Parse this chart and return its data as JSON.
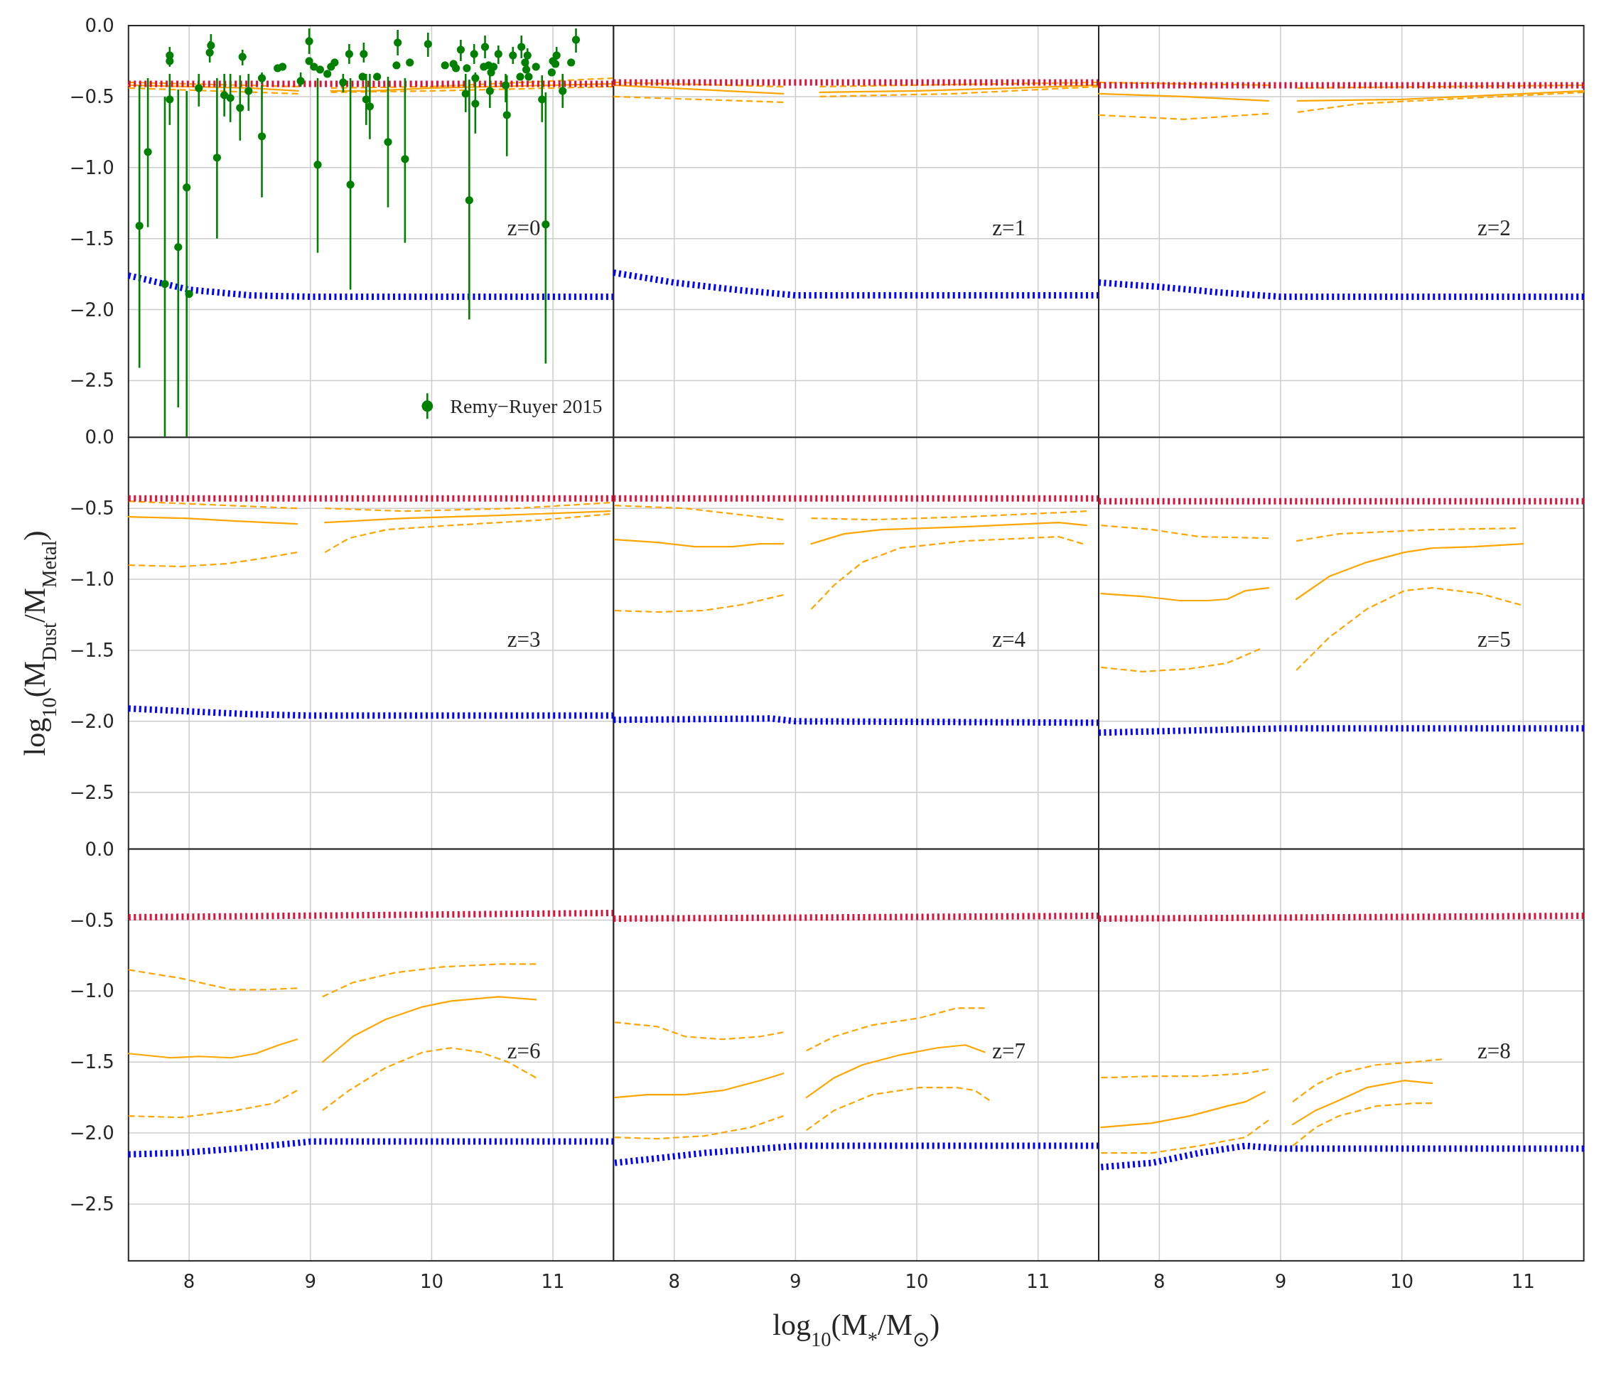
{
  "chart_data": [
    {
      "type": "line",
      "xlim": [
        7.5,
        11.5
      ],
      "xticks": [
        8,
        9,
        10,
        11
      ],
      "ylim": [
        -2.9,
        0
      ],
      "yticks": [
        {
          "value": 0,
          "label": "0.0"
        },
        {
          "value": -0.5,
          "label": "−0.5"
        },
        {
          "value": -1,
          "label": "−1.0"
        },
        {
          "value": -1.5,
          "label": "−1.5"
        },
        {
          "value": -2,
          "label": "−2.0"
        },
        {
          "value": -2.5,
          "label": "−2.5"
        }
      ],
      "grid": true,
      "tick_labels": "y",
      "legend": "bottom right",
      "annotations": [
        "z=0"
      ],
      "series": [
        {
          "color": "#ffa500",
          "line_style": "solid",
          "x": [
            7.5,
            8.0,
            8.5,
            8.9
          ],
          "values": [
            -0.42,
            -0.43,
            -0.44,
            -0.46
          ]
        },
        {
          "color": "#ffa500",
          "line_style": "solid",
          "x": [
            9.17,
            9.5,
            10.0,
            10.5,
            11.0,
            11.5
          ],
          "values": [
            -0.46,
            -0.46,
            -0.44,
            -0.43,
            -0.42,
            -0.41
          ]
        },
        {
          "color": "#ffa500",
          "line_style": "dashed",
          "x": [
            7.5,
            8.9
          ],
          "values": [
            -0.4,
            -0.43
          ]
        },
        {
          "color": "#ffa500",
          "line_style": "dashed",
          "x": [
            9.17,
            10.0,
            11.0,
            11.5
          ],
          "values": [
            -0.44,
            -0.43,
            -0.39,
            -0.37
          ]
        },
        {
          "color": "#ffa500",
          "line_style": "dashed",
          "x": [
            7.5,
            8.9
          ],
          "values": [
            -0.44,
            -0.48
          ]
        },
        {
          "color": "#ffa500",
          "line_style": "dashed",
          "x": [
            9.17,
            10.0,
            11.0,
            11.5
          ],
          "values": [
            -0.47,
            -0.46,
            -0.44,
            -0.43
          ]
        },
        {
          "color": "#dc143c",
          "line_style": "dotted",
          "x": [
            7.5,
            11.5
          ],
          "values": [
            -0.41,
            -0.41
          ]
        },
        {
          "color": "#0000ff",
          "line_style": "dotted",
          "x": [
            7.5,
            8.0,
            8.5,
            9.0,
            11.5
          ],
          "values": [
            -1.76,
            -1.86,
            -1.9,
            -1.91,
            -1.91
          ]
        },
        {
          "type": "scatter",
          "name": "Remy−Ruyer 2015",
          "color": "#008000",
          "marker": "circle",
          "x": [
            7.59,
            7.66,
            7.8,
            7.84,
            7.84,
            7.84,
            7.91,
            7.98,
            8.0,
            8.08,
            8.17,
            8.18,
            8.23,
            8.29,
            8.34,
            8.42,
            8.44,
            8.49,
            8.6,
            8.6,
            8.73,
            8.77,
            8.92,
            8.99,
            8.99,
            9.03,
            9.08,
            9.14,
            9.17,
            9.2,
            9.06,
            9.27,
            9.32,
            9.33,
            9.44,
            9.43,
            9.46,
            9.49,
            9.55,
            9.64,
            9.71,
            9.72,
            9.78,
            9.82,
            9.97,
            10.11,
            10.18,
            10.2,
            10.24,
            10.29,
            10.28,
            10.31,
            10.35,
            10.36,
            10.36,
            10.44,
            10.43,
            10.47,
            10.51,
            10.49,
            10.48,
            10.55,
            10.61,
            10.62,
            10.67,
            10.74,
            10.73,
            10.79,
            10.77,
            10.78,
            10.8,
            10.86,
            10.91,
            10.94,
            10.99,
            11.0,
            11.03,
            11.02,
            11.08,
            11.15,
            11.19
          ],
          "values": [
            -1.41,
            -0.89,
            -1.82,
            -0.21,
            -0.25,
            -0.52,
            -1.56,
            -1.14,
            -1.89,
            -0.44,
            -0.19,
            -0.14,
            -0.93,
            -0.49,
            -0.51,
            -0.58,
            -0.22,
            -0.46,
            -0.37,
            -0.78,
            -0.3,
            -0.29,
            -0.39,
            -0.11,
            -0.25,
            -0.29,
            -0.31,
            -0.34,
            -0.29,
            -0.26,
            -0.98,
            -0.4,
            -0.2,
            -1.12,
            -0.2,
            -0.36,
            -0.52,
            -0.57,
            -0.36,
            -0.82,
            -0.28,
            -0.12,
            -0.94,
            -0.26,
            -0.13,
            -0.28,
            -0.27,
            -0.3,
            -0.17,
            -0.3,
            -0.48,
            -1.23,
            -0.2,
            -0.37,
            -0.55,
            -0.15,
            -0.29,
            -0.28,
            -0.29,
            -0.33,
            -0.46,
            -0.2,
            -0.42,
            -0.63,
            -0.21,
            -0.15,
            -0.36,
            -0.21,
            -0.26,
            -0.31,
            -0.36,
            -0.29,
            -0.52,
            -1.4,
            -0.33,
            -0.25,
            -0.21,
            -0.27,
            -0.46,
            -0.26,
            -0.1
          ],
          "errors": [
            [
              -2.41,
              -0.42
            ],
            [
              -1.42,
              -0.37
            ],
            [
              -2.9,
              -0.5
            ],
            [
              -0.29,
              -0.15
            ],
            null,
            [
              -0.7,
              -0.34
            ],
            [
              -2.69,
              -0.45
            ],
            [
              -2.9,
              -0.46
            ],
            null,
            [
              -0.57,
              -0.34
            ],
            [
              -0.26,
              -0.11
            ],
            [
              -0.21,
              -0.06
            ],
            [
              -1.5,
              -0.37
            ],
            [
              -0.64,
              -0.34
            ],
            [
              -0.68,
              -0.34
            ],
            [
              -0.81,
              -0.35
            ],
            [
              -0.28,
              -0.17
            ],
            [
              -0.6,
              -0.34
            ],
            [
              -0.41,
              -0.33
            ],
            [
              -1.21,
              -0.42
            ],
            null,
            null,
            [
              -0.43,
              -0.33
            ],
            [
              -0.2,
              -0.02
            ],
            null,
            null,
            null,
            null,
            null,
            null,
            [
              -1.6,
              -0.37
            ],
            [
              -0.47,
              -0.34
            ],
            [
              -0.27,
              -0.13
            ],
            [
              -1.86,
              -0.37
            ],
            [
              -0.26,
              -0.12
            ],
            null,
            [
              -0.7,
              -0.34
            ],
            [
              -0.8,
              -0.34
            ],
            null,
            [
              -1.28,
              -0.36
            ],
            null,
            [
              -0.21,
              -0.03
            ],
            [
              -1.53,
              -0.37
            ],
            null,
            [
              -0.22,
              -0.05
            ],
            null,
            null,
            null,
            [
              -0.25,
              -0.1
            ],
            null,
            [
              -0.61,
              -0.34
            ],
            [
              -2.07,
              -0.38
            ],
            [
              -0.27,
              -0.13
            ],
            null,
            [
              -0.76,
              -0.33
            ],
            [
              -0.23,
              -0.07
            ],
            null,
            null,
            null,
            null,
            [
              -0.58,
              -0.34
            ],
            [
              -0.27,
              -0.14
            ],
            [
              -0.54,
              -0.34
            ],
            [
              -0.92,
              -0.35
            ],
            [
              -0.27,
              -0.15
            ],
            [
              -0.23,
              -0.07
            ],
            null,
            [
              -0.29,
              -0.16
            ],
            null,
            null,
            null,
            null,
            [
              -0.68,
              -0.35
            ],
            [
              -2.38,
              -0.47
            ],
            null,
            null,
            [
              -0.24,
              -0.15
            ],
            null,
            [
              -0.58,
              -0.34
            ],
            null,
            [
              -0.19,
              -0.02
            ]
          ]
        }
      ]
    },
    {
      "type": "line",
      "xlim": [
        7.5,
        11.5
      ],
      "xticks": [
        8,
        9,
        10,
        11
      ],
      "ylim": [
        -2.9,
        0
      ],
      "yticks": [
        0,
        -0.5,
        -1,
        -1.5,
        -2,
        -2.5
      ],
      "grid": true,
      "tick_labels": false,
      "annotations": [
        "z=1"
      ],
      "series": [
        {
          "color": "#ffa500",
          "line_style": "solid",
          "x": [
            7.5,
            8.2,
            8.9
          ],
          "values": [
            -0.42,
            -0.45,
            -0.48
          ]
        },
        {
          "color": "#ffa500",
          "line_style": "solid",
          "x": [
            9.2,
            10.0,
            10.8,
            11.5
          ],
          "values": [
            -0.47,
            -0.46,
            -0.44,
            -0.42
          ]
        },
        {
          "color": "#ffa500",
          "line_style": "dashed",
          "x": [
            7.5,
            8.9
          ],
          "values": [
            -0.4,
            -0.43
          ]
        },
        {
          "color": "#ffa500",
          "line_style": "dashed",
          "x": [
            9.2,
            11.5
          ],
          "values": [
            -0.43,
            -0.4
          ]
        },
        {
          "color": "#ffa500",
          "line_style": "dashed",
          "x": [
            7.5,
            8.9
          ],
          "values": [
            -0.5,
            -0.54
          ]
        },
        {
          "color": "#ffa500",
          "line_style": "dashed",
          "x": [
            9.2,
            10.3,
            11.5
          ],
          "values": [
            -0.5,
            -0.48,
            -0.43
          ]
        },
        {
          "color": "#dc143c",
          "line_style": "dotted",
          "x": [
            7.5,
            11.5
          ],
          "values": [
            -0.4,
            -0.4
          ]
        },
        {
          "color": "#0000ff",
          "line_style": "dotted",
          "x": [
            7.5,
            8.0,
            8.5,
            9.0,
            11.5
          ],
          "values": [
            -1.74,
            -1.81,
            -1.86,
            -1.9,
            -1.9
          ]
        }
      ]
    },
    {
      "type": "line",
      "xlim": [
        7.5,
        11.5
      ],
      "xticks": [
        8,
        9,
        10,
        11
      ],
      "ylim": [
        -2.9,
        0
      ],
      "yticks": [
        0,
        -0.5,
        -1,
        -1.5,
        -2,
        -2.5
      ],
      "grid": true,
      "tick_labels": false,
      "annotations": [
        "z=2"
      ],
      "series": [
        {
          "color": "#ffa500",
          "line_style": "solid",
          "x": [
            7.5,
            8.2,
            8.9
          ],
          "values": [
            -0.48,
            -0.5,
            -0.53
          ]
        },
        {
          "color": "#ffa500",
          "line_style": "solid",
          "x": [
            9.14,
            10.0,
            11.5
          ],
          "values": [
            -0.53,
            -0.52,
            -0.46
          ]
        },
        {
          "color": "#ffa500",
          "line_style": "dashed",
          "x": [
            7.5,
            8.9
          ],
          "values": [
            -0.4,
            -0.42
          ]
        },
        {
          "color": "#ffa500",
          "line_style": "dashed",
          "x": [
            9.14,
            11.5
          ],
          "values": [
            -0.44,
            -0.42
          ]
        },
        {
          "color": "#ffa500",
          "line_style": "dashed",
          "x": [
            7.5,
            8.2,
            8.9
          ],
          "values": [
            -0.63,
            -0.66,
            -0.62
          ]
        },
        {
          "color": "#ffa500",
          "line_style": "dashed",
          "x": [
            9.14,
            9.65,
            11.5
          ],
          "values": [
            -0.61,
            -0.55,
            -0.47
          ]
        },
        {
          "color": "#dc143c",
          "line_style": "dotted",
          "x": [
            7.5,
            11.5
          ],
          "values": [
            -0.42,
            -0.42
          ]
        },
        {
          "color": "#0000ff",
          "line_style": "dotted",
          "x": [
            7.5,
            8.0,
            8.5,
            9.0,
            11.5
          ],
          "values": [
            -1.81,
            -1.84,
            -1.88,
            -1.91,
            -1.91
          ]
        }
      ]
    },
    {
      "type": "line",
      "xlim": [
        7.5,
        11.5
      ],
      "xticks": [
        8,
        9,
        10,
        11
      ],
      "ylim": [
        -2.9,
        0
      ],
      "yticks": [
        {
          "value": 0,
          "label": "0.0"
        },
        {
          "value": -0.5,
          "label": "−0.5"
        },
        {
          "value": -1,
          "label": "−1.0"
        },
        {
          "value": -1.5,
          "label": "−1.5"
        },
        {
          "value": -2,
          "label": "−2.0"
        },
        {
          "value": -2.5,
          "label": "−2.5"
        }
      ],
      "grid": true,
      "tick_labels": "y",
      "ylabel": "log$_{10}$(M$_{Dust}$/M$_{Metal}$)",
      "annotations": [
        "z=3"
      ],
      "series": [
        {
          "color": "#ffa500",
          "line_style": "solid",
          "x": [
            7.5,
            7.97,
            8.39,
            8.89
          ],
          "values": [
            -0.56,
            -0.57,
            -0.59,
            -0.61
          ]
        },
        {
          "color": "#ffa500",
          "line_style": "solid",
          "x": [
            9.12,
            9.78,
            10.55,
            11.47
          ],
          "values": [
            -0.6,
            -0.57,
            -0.55,
            -0.52
          ]
        },
        {
          "color": "#ffa500",
          "line_style": "dashed",
          "x": [
            7.5,
            8.89
          ],
          "values": [
            -0.45,
            -0.5
          ]
        },
        {
          "color": "#ffa500",
          "line_style": "dashed",
          "x": [
            9.12,
            9.78,
            10.7,
            11.47
          ],
          "values": [
            -0.5,
            -0.52,
            -0.5,
            -0.46
          ]
        },
        {
          "color": "#ffa500",
          "line_style": "dashed",
          "x": [
            7.5,
            7.93,
            8.31,
            8.62,
            8.89
          ],
          "values": [
            -0.9,
            -0.91,
            -0.89,
            -0.85,
            -0.81
          ]
        },
        {
          "color": "#ffa500",
          "line_style": "dashed",
          "x": [
            9.12,
            9.32,
            9.63,
            10.16,
            10.94,
            11.47
          ],
          "values": [
            -0.81,
            -0.71,
            -0.65,
            -0.62,
            -0.58,
            -0.54
          ]
        },
        {
          "color": "#dc143c",
          "line_style": "dotted",
          "x": [
            7.5,
            11.5
          ],
          "values": [
            -0.43,
            -0.43
          ]
        },
        {
          "color": "#0000ff",
          "line_style": "dotted",
          "x": [
            7.5,
            8.0,
            8.5,
            9.0,
            11.5
          ],
          "values": [
            -1.91,
            -1.93,
            -1.95,
            -1.96,
            -1.96
          ]
        }
      ]
    },
    {
      "type": "line",
      "xlim": [
        7.5,
        11.5
      ],
      "xticks": [
        8,
        9,
        10,
        11
      ],
      "ylim": [
        -2.9,
        0
      ],
      "yticks": [
        0,
        -0.5,
        -1,
        -1.5,
        -2,
        -2.5
      ],
      "grid": true,
      "tick_labels": false,
      "annotations": [
        "z=4"
      ],
      "series": [
        {
          "color": "#ffa500",
          "line_style": "solid",
          "x": [
            7.51,
            7.86,
            8.17,
            8.48,
            8.71,
            8.9
          ],
          "values": [
            -0.72,
            -0.74,
            -0.77,
            -0.77,
            -0.75,
            -0.75
          ]
        },
        {
          "color": "#ffa500",
          "line_style": "solid",
          "x": [
            9.13,
            9.4,
            9.71,
            10.4,
            11.17,
            11.4
          ],
          "values": [
            -0.75,
            -0.68,
            -0.65,
            -0.63,
            -0.6,
            -0.62
          ]
        },
        {
          "color": "#ffa500",
          "line_style": "dashed",
          "x": [
            7.51,
            8.09,
            8.9
          ],
          "values": [
            -0.48,
            -0.5,
            -0.58
          ]
        },
        {
          "color": "#ffa500",
          "line_style": "dashed",
          "x": [
            9.13,
            9.63,
            10.4,
            11.17,
            11.4
          ],
          "values": [
            -0.57,
            -0.58,
            -0.56,
            -0.53,
            -0.52
          ]
        },
        {
          "color": "#ffa500",
          "line_style": "dashed",
          "x": [
            7.51,
            7.86,
            8.24,
            8.55,
            8.9
          ],
          "values": [
            -1.22,
            -1.23,
            -1.22,
            -1.18,
            -1.11
          ]
        },
        {
          "color": "#ffa500",
          "line_style": "dashed",
          "x": [
            9.13,
            9.32,
            9.55,
            9.86,
            10.4,
            11.17,
            11.37
          ],
          "values": [
            -1.21,
            -1.04,
            -0.88,
            -0.78,
            -0.73,
            -0.7,
            -0.75
          ]
        },
        {
          "color": "#dc143c",
          "line_style": "dotted",
          "x": [
            7.5,
            11.5
          ],
          "values": [
            -0.43,
            -0.43
          ]
        },
        {
          "color": "#0000ff",
          "line_style": "dotted",
          "x": [
            7.5,
            8.8,
            9.0,
            11.5
          ],
          "values": [
            -1.99,
            -1.98,
            -2.0,
            -2.01
          ]
        }
      ]
    },
    {
      "type": "line",
      "xlim": [
        7.5,
        11.5
      ],
      "xticks": [
        8,
        9,
        10,
        11
      ],
      "ylim": [
        -2.9,
        0
      ],
      "yticks": [
        0,
        -0.5,
        -1,
        -1.5,
        -2,
        -2.5
      ],
      "grid": true,
      "tick_labels": false,
      "annotations": [
        "z=5"
      ],
      "series": [
        {
          "color": "#ffa500",
          "line_style": "solid",
          "x": [
            7.52,
            7.86,
            8.17,
            8.4,
            8.56,
            8.71,
            8.9
          ],
          "values": [
            -1.1,
            -1.12,
            -1.15,
            -1.15,
            -1.14,
            -1.08,
            -1.06
          ]
        },
        {
          "color": "#ffa500",
          "line_style": "solid",
          "x": [
            9.13,
            9.4,
            9.71,
            10.02,
            10.25,
            10.6,
            11.0
          ],
          "values": [
            -1.14,
            -0.98,
            -0.88,
            -0.81,
            -0.78,
            -0.77,
            -0.75
          ]
        },
        {
          "color": "#ffa500",
          "line_style": "dashed",
          "x": [
            7.52,
            7.94,
            8.33,
            8.9
          ],
          "values": [
            -0.62,
            -0.65,
            -0.7,
            -0.71
          ]
        },
        {
          "color": "#ffa500",
          "line_style": "dashed",
          "x": [
            9.13,
            9.48,
            10.25,
            10.94
          ],
          "values": [
            -0.73,
            -0.68,
            -0.65,
            -0.64
          ]
        },
        {
          "color": "#ffa500",
          "line_style": "dashed",
          "x": [
            7.52,
            7.86,
            8.25,
            8.56,
            8.83
          ],
          "values": [
            -1.62,
            -1.65,
            -1.63,
            -1.59,
            -1.49
          ]
        },
        {
          "color": "#ffa500",
          "line_style": "dashed",
          "x": [
            9.13,
            9.4,
            9.71,
            10.02,
            10.25,
            10.64,
            10.98
          ],
          "values": [
            -1.64,
            -1.41,
            -1.21,
            -1.08,
            -1.06,
            -1.1,
            -1.18
          ]
        },
        {
          "color": "#dc143c",
          "line_style": "dotted",
          "x": [
            7.5,
            11.5
          ],
          "values": [
            -0.45,
            -0.45
          ]
        },
        {
          "color": "#0000ff",
          "line_style": "dotted",
          "x": [
            7.5,
            9.0,
            11.5
          ],
          "values": [
            -2.08,
            -2.05,
            -2.05
          ]
        }
      ]
    },
    {
      "type": "line",
      "xlim": [
        7.5,
        11.5
      ],
      "xticks": [
        8,
        9,
        10,
        11
      ],
      "ylim": [
        -2.9,
        0
      ],
      "yticks": [
        {
          "value": 0,
          "label": "0.0"
        },
        {
          "value": -0.5,
          "label": "−0.5"
        },
        {
          "value": -1,
          "label": "−1.0"
        },
        {
          "value": -1.5,
          "label": "−1.5"
        },
        {
          "value": -2,
          "label": "−2.0"
        },
        {
          "value": -2.5,
          "label": "−2.5"
        }
      ],
      "grid": true,
      "annotations": [
        "z=6"
      ],
      "series": [
        {
          "color": "#ffa500",
          "line_style": "solid",
          "x": [
            7.5,
            7.85,
            8.08,
            8.35,
            8.55,
            8.74,
            8.89
          ],
          "values": [
            -1.44,
            -1.47,
            -1.46,
            -1.47,
            -1.44,
            -1.38,
            -1.34
          ]
        },
        {
          "color": "#ffa500",
          "line_style": "solid",
          "x": [
            9.1,
            9.35,
            9.62,
            9.93,
            10.16,
            10.55,
            10.86
          ],
          "values": [
            -1.5,
            -1.32,
            -1.2,
            -1.11,
            -1.07,
            -1.04,
            -1.06
          ]
        },
        {
          "color": "#ffa500",
          "line_style": "dashed",
          "x": [
            7.5,
            7.93,
            8.35,
            8.62,
            8.89
          ],
          "values": [
            -0.85,
            -0.91,
            -0.99,
            -0.99,
            -0.98
          ]
        },
        {
          "color": "#ffa500",
          "line_style": "dashed",
          "x": [
            9.1,
            9.35,
            9.7,
            10.09,
            10.55,
            10.86
          ],
          "values": [
            -1.04,
            -0.94,
            -0.87,
            -0.83,
            -0.81,
            -0.81
          ]
        },
        {
          "color": "#ffa500",
          "line_style": "dashed",
          "x": [
            7.5,
            7.93,
            8.39,
            8.7,
            8.89
          ],
          "values": [
            -1.88,
            -1.89,
            -1.84,
            -1.79,
            -1.7
          ]
        },
        {
          "color": "#ffa500",
          "line_style": "dashed",
          "x": [
            9.1,
            9.32,
            9.62,
            9.93,
            10.16,
            10.4,
            10.63,
            10.86
          ],
          "values": [
            -1.84,
            -1.7,
            -1.54,
            -1.43,
            -1.4,
            -1.43,
            -1.5,
            -1.61
          ]
        },
        {
          "color": "#dc143c",
          "line_style": "dotted",
          "x": [
            7.5,
            11.5
          ],
          "values": [
            -0.48,
            -0.45
          ]
        },
        {
          "color": "#0000ff",
          "line_style": "dotted",
          "x": [
            7.5,
            7.93,
            8.39,
            8.89,
            9.0,
            11.5
          ],
          "values": [
            -2.15,
            -2.14,
            -2.11,
            -2.07,
            -2.06,
            -2.06
          ]
        }
      ]
    },
    {
      "type": "line",
      "xlim": [
        7.5,
        11.5
      ],
      "xticks": [
        8,
        9,
        10,
        11
      ],
      "ylim": [
        -2.9,
        0
      ],
      "yticks": [
        0,
        -0.5,
        -1,
        -1.5,
        -2,
        -2.5
      ],
      "grid": true,
      "tick_labels": "x",
      "xlabel": "log$_{10}$(M$_{*}$/M$_{⊙}$)",
      "annotations": [
        "z=7"
      ],
      "series": [
        {
          "color": "#ffa500",
          "line_style": "solid",
          "x": [
            7.51,
            7.78,
            8.09,
            8.4,
            8.71,
            8.9
          ],
          "values": [
            -1.75,
            -1.73,
            -1.73,
            -1.7,
            -1.63,
            -1.58
          ]
        },
        {
          "color": "#ffa500",
          "line_style": "solid",
          "x": [
            9.09,
            9.32,
            9.55,
            9.86,
            10.17,
            10.4,
            10.56
          ],
          "values": [
            -1.75,
            -1.61,
            -1.52,
            -1.45,
            -1.4,
            -1.38,
            -1.43
          ]
        },
        {
          "color": "#ffa500",
          "line_style": "dashed",
          "x": [
            7.51,
            7.86,
            8.09,
            8.4,
            8.71,
            8.9
          ],
          "values": [
            -1.22,
            -1.25,
            -1.32,
            -1.34,
            -1.32,
            -1.29
          ]
        },
        {
          "color": "#ffa500",
          "line_style": "dashed",
          "x": [
            9.09,
            9.32,
            9.63,
            10.02,
            10.33,
            10.56
          ],
          "values": [
            -1.42,
            -1.32,
            -1.24,
            -1.19,
            -1.12,
            -1.12
          ]
        },
        {
          "color": "#ffa500",
          "line_style": "dashed",
          "x": [
            7.51,
            7.86,
            8.25,
            8.63,
            8.9
          ],
          "values": [
            -2.03,
            -2.04,
            -2.02,
            -1.96,
            -1.88
          ]
        },
        {
          "color": "#ffa500",
          "line_style": "dashed",
          "x": [
            9.09,
            9.32,
            9.63,
            10.02,
            10.33,
            10.48,
            10.6
          ],
          "values": [
            -1.98,
            -1.84,
            -1.73,
            -1.68,
            -1.68,
            -1.7,
            -1.77
          ]
        },
        {
          "color": "#dc143c",
          "line_style": "dotted",
          "x": [
            7.5,
            11.5
          ],
          "values": [
            -0.49,
            -0.47
          ]
        },
        {
          "color": "#0000ff",
          "line_style": "dotted",
          "x": [
            7.51,
            7.94,
            8.25,
            8.71,
            9.02,
            11.5
          ],
          "values": [
            -2.21,
            -2.17,
            -2.14,
            -2.11,
            -2.09,
            -2.09
          ]
        }
      ]
    },
    {
      "type": "line",
      "xlim": [
        7.5,
        11.5
      ],
      "xticks": [
        8,
        9,
        10,
        11
      ],
      "ylim": [
        -2.9,
        0
      ],
      "yticks": [
        0,
        -0.5,
        -1,
        -1.5,
        -2,
        -2.5
      ],
      "grid": true,
      "tick_labels": "x",
      "annotations": [
        "z=8"
      ],
      "series": [
        {
          "color": "#ffa500",
          "line_style": "solid",
          "x": [
            7.52,
            7.94,
            8.25,
            8.56,
            8.71,
            8.87
          ],
          "values": [
            -1.96,
            -1.93,
            -1.88,
            -1.81,
            -1.78,
            -1.71
          ]
        },
        {
          "color": "#ffa500",
          "line_style": "solid",
          "x": [
            9.1,
            9.29,
            9.48,
            9.71,
            10.02,
            10.25
          ],
          "values": [
            -1.94,
            -1.84,
            -1.77,
            -1.68,
            -1.63,
            -1.65
          ]
        },
        {
          "color": "#ffa500",
          "line_style": "dashed",
          "x": [
            7.52,
            7.94,
            8.33,
            8.71,
            8.9
          ],
          "values": [
            -1.61,
            -1.6,
            -1.6,
            -1.58,
            -1.55
          ]
        },
        {
          "color": "#ffa500",
          "line_style": "dashed",
          "x": [
            9.1,
            9.29,
            9.48,
            9.79,
            10.1,
            10.33
          ],
          "values": [
            -1.78,
            -1.66,
            -1.58,
            -1.52,
            -1.5,
            -1.48
          ]
        },
        {
          "color": "#ffa500",
          "line_style": "dashed",
          "x": [
            7.52,
            7.94,
            8.33,
            8.71,
            8.9
          ],
          "values": [
            -2.14,
            -2.14,
            -2.09,
            -2.03,
            -1.91
          ]
        },
        {
          "color": "#ffa500",
          "line_style": "dashed",
          "x": [
            9.1,
            9.29,
            9.48,
            9.79,
            10.1,
            10.25
          ],
          "values": [
            -2.09,
            -1.96,
            -1.88,
            -1.81,
            -1.79,
            -1.79
          ]
        },
        {
          "color": "#dc143c",
          "line_style": "dotted",
          "x": [
            7.5,
            11.5
          ],
          "values": [
            -0.49,
            -0.47
          ]
        },
        {
          "color": "#0000ff",
          "line_style": "dotted",
          "x": [
            7.52,
            7.94,
            8.33,
            8.71,
            9.02,
            11.5
          ],
          "values": [
            -2.24,
            -2.21,
            -2.14,
            -2.09,
            -2.11,
            -2.11
          ]
        }
      ]
    }
  ]
}
